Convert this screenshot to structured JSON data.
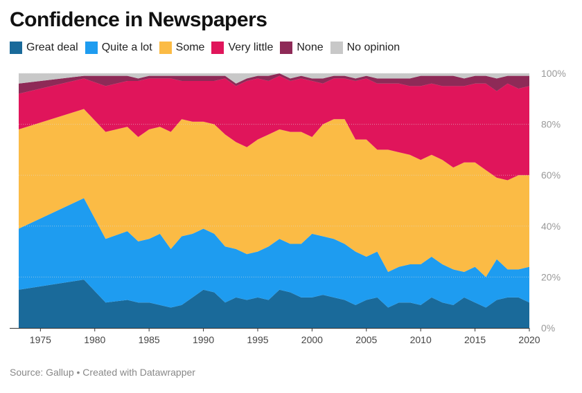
{
  "title": "Confidence in Newspapers",
  "footer": {
    "source": "Source: Gallup",
    "separator": "•",
    "credit": "Created with Datawrapper"
  },
  "colors": {
    "great_deal": "#1a6a9a",
    "quite_a_lot": "#1e9cf0",
    "some": "#fbbb45",
    "very_little": "#e0155b",
    "none": "#8e2a57",
    "no_opinion": "#c8c8c8",
    "tick_text": "#999999",
    "gridline": "#dddddd",
    "axis_line": "#333333"
  },
  "chart_data": {
    "type": "area",
    "stacked": true,
    "title": "Confidence in Newspapers",
    "xlabel": "",
    "ylabel": "",
    "ylim": [
      0,
      100
    ],
    "xlim": [
      1973,
      2020
    ],
    "x_ticks": [
      "1975",
      "1980",
      "1985",
      "1990",
      "1995",
      "2000",
      "2005",
      "2010",
      "2015",
      "2020"
    ],
    "y_ticks": [
      "0%",
      "20%",
      "40%",
      "60%",
      "80%",
      "100%"
    ],
    "y_tick_values": [
      0,
      20,
      40,
      60,
      80,
      100
    ],
    "x_tick_values": [
      1975,
      1980,
      1985,
      1990,
      1995,
      2000,
      2005,
      2010,
      2015,
      2020
    ],
    "grid": true,
    "legend_position": "top-left",
    "x": [
      1973,
      1979,
      1981,
      1983,
      1984,
      1985,
      1986,
      1987,
      1988,
      1989,
      1990,
      1991,
      1992,
      1993,
      1994,
      1995,
      1996,
      1997,
      1998,
      1999,
      2000,
      2001,
      2002,
      2003,
      2004,
      2005,
      2006,
      2007,
      2008,
      2009,
      2010,
      2011,
      2012,
      2013,
      2014,
      2015,
      2016,
      2017,
      2018,
      2019,
      2020
    ],
    "series": [
      {
        "name": "Great deal",
        "color_key": "great_deal",
        "values": [
          15,
          19,
          10,
          11,
          10,
          10,
          9,
          8,
          9,
          12,
          15,
          14,
          10,
          12,
          11,
          12,
          11,
          15,
          14,
          12,
          12,
          13,
          12,
          11,
          9,
          11,
          12,
          8,
          10,
          10,
          9,
          12,
          10,
          9,
          12,
          10,
          8,
          11,
          12,
          12,
          10
        ]
      },
      {
        "name": "Quite a lot",
        "color_key": "quite_a_lot",
        "values": [
          24,
          32,
          25,
          27,
          24,
          25,
          28,
          23,
          27,
          25,
          24,
          23,
          22,
          19,
          18,
          18,
          21,
          20,
          19,
          21,
          25,
          23,
          23,
          22,
          21,
          17,
          18,
          14,
          14,
          15,
          16,
          16,
          15,
          14,
          10,
          14,
          12,
          16,
          11,
          11,
          14
        ]
      },
      {
        "name": "Some",
        "color_key": "some",
        "values": [
          39,
          35,
          42,
          41,
          41,
          43,
          42,
          46,
          46,
          44,
          42,
          43,
          44,
          42,
          42,
          44,
          44,
          43,
          44,
          44,
          38,
          44,
          47,
          49,
          44,
          46,
          40,
          48,
          45,
          43,
          41,
          40,
          41,
          40,
          43,
          41,
          42,
          32,
          35,
          37,
          36
        ]
      },
      {
        "name": "Very little",
        "color_key": "very_little",
        "values": [
          14,
          12,
          18,
          18,
          22,
          20,
          19,
          21,
          15,
          16,
          16,
          17,
          22,
          22,
          26,
          24,
          21,
          21,
          20,
          21,
          22,
          16,
          16,
          16,
          23,
          24,
          26,
          26,
          27,
          27,
          29,
          28,
          29,
          32,
          30,
          31,
          34,
          34,
          38,
          34,
          35
        ]
      },
      {
        "name": "None",
        "color_key": "none",
        "values": [
          4,
          1,
          4,
          2,
          1,
          1,
          1,
          1,
          2,
          2,
          2,
          2,
          1,
          1,
          1,
          1,
          2,
          1,
          1,
          1,
          1,
          2,
          1,
          1,
          1,
          1,
          2,
          2,
          2,
          3,
          4,
          3,
          4,
          4,
          3,
          3,
          3,
          5,
          3,
          5,
          4
        ]
      },
      {
        "name": "No opinion",
        "color_key": "no_opinion",
        "values": [
          4,
          1,
          1,
          1,
          2,
          1,
          1,
          1,
          1,
          1,
          1,
          1,
          1,
          4,
          2,
          1,
          1,
          0,
          2,
          1,
          2,
          2,
          1,
          1,
          2,
          1,
          2,
          2,
          2,
          2,
          1,
          1,
          1,
          1,
          2,
          1,
          1,
          2,
          1,
          1,
          1
        ]
      }
    ]
  }
}
